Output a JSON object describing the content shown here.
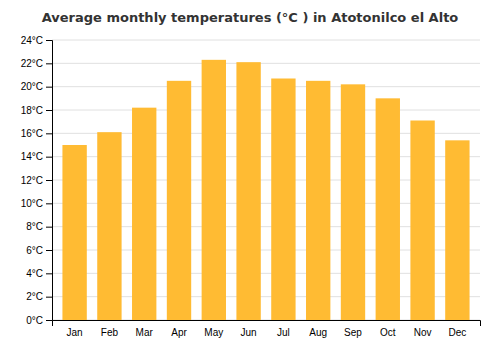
{
  "chart_data": {
    "type": "bar",
    "title": "Average monthly temperatures (°C ) in Atotonilco el Alto",
    "categories": [
      "Jan",
      "Feb",
      "Mar",
      "Apr",
      "May",
      "Jun",
      "Jul",
      "Aug",
      "Sep",
      "Oct",
      "Nov",
      "Dec"
    ],
    "values": [
      15.0,
      16.1,
      18.2,
      20.5,
      22.3,
      22.1,
      20.7,
      20.5,
      20.2,
      19.0,
      17.1,
      15.4
    ],
    "color": "#FFBB33",
    "ylim": [
      0,
      24
    ],
    "yticks": [
      {
        "value": 0,
        "label": "0°C"
      },
      {
        "value": 2,
        "label": "2°C"
      },
      {
        "value": 4,
        "label": "4°C"
      },
      {
        "value": 6,
        "label": "6°C"
      },
      {
        "value": 8,
        "label": "8°C"
      },
      {
        "value": 10,
        "label": "10°C"
      },
      {
        "value": 12,
        "label": "12°C"
      },
      {
        "value": 14,
        "label": "14°C"
      },
      {
        "value": 16,
        "label": "16°C"
      },
      {
        "value": 18,
        "label": "18°C"
      },
      {
        "value": 20,
        "label": "20°C"
      },
      {
        "value": 22,
        "label": "22°C"
      },
      {
        "value": 24,
        "label": "24°C"
      }
    ],
    "grid": true
  }
}
